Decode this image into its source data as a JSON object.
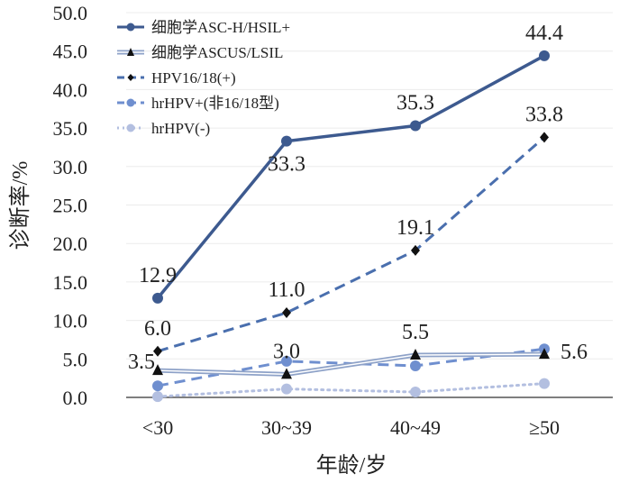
{
  "chart_data": {
    "type": "line",
    "title": "",
    "xlabel": "年龄/岁",
    "ylabel": "诊断率/%",
    "ylim": [
      0,
      50
    ],
    "yticks": [
      "0.0",
      "5.0",
      "10.0",
      "15.0",
      "20.0",
      "25.0",
      "30.0",
      "35.0",
      "40.0",
      "45.0",
      "50.0"
    ],
    "categories": [
      "<30",
      "30~39",
      "40~49",
      "≥50"
    ],
    "grid": true,
    "legend_position": "top-left",
    "series": [
      {
        "name": "细胞学ASC-H/HSIL+",
        "values": [
          12.9,
          33.3,
          35.3,
          44.4
        ],
        "color": "#3d5a8f",
        "style": "solid",
        "marker": "circle",
        "labels": [
          "12.9",
          "33.3",
          "35.3",
          "44.4"
        ],
        "label_pos": [
          "above",
          "below",
          "above",
          "above"
        ]
      },
      {
        "name": "细胞学ASCUS/LSIL",
        "values": [
          3.5,
          3.0,
          5.5,
          5.6
        ],
        "color": "#8ea2c8",
        "style": "double",
        "marker": "triangle",
        "labels": [
          "3.5",
          "3.0",
          "5.5",
          "5.6"
        ],
        "label_pos": [
          "left",
          "above",
          "above",
          "right"
        ]
      },
      {
        "name": "HPV16/18(+)",
        "values": [
          6.0,
          11.0,
          19.1,
          33.8
        ],
        "color": "#4a6fae",
        "style": "dashed",
        "marker": "diamond",
        "labels": [
          "6.0",
          "11.0",
          "19.1",
          "33.8"
        ],
        "label_pos": [
          "above",
          "above",
          "above",
          "above"
        ]
      },
      {
        "name": "hrHPV+(非16/18型)",
        "values": [
          1.5,
          4.7,
          4.1,
          6.3
        ],
        "color": "#6f8fcf",
        "style": "dashed",
        "marker": "circle",
        "labels": [],
        "label_pos": []
      },
      {
        "name": "hrHPV(-)",
        "values": [
          0.1,
          1.1,
          0.7,
          1.8
        ],
        "color": "#b3bfe0",
        "style": "dotted",
        "marker": "circle",
        "labels": [],
        "label_pos": []
      }
    ]
  }
}
